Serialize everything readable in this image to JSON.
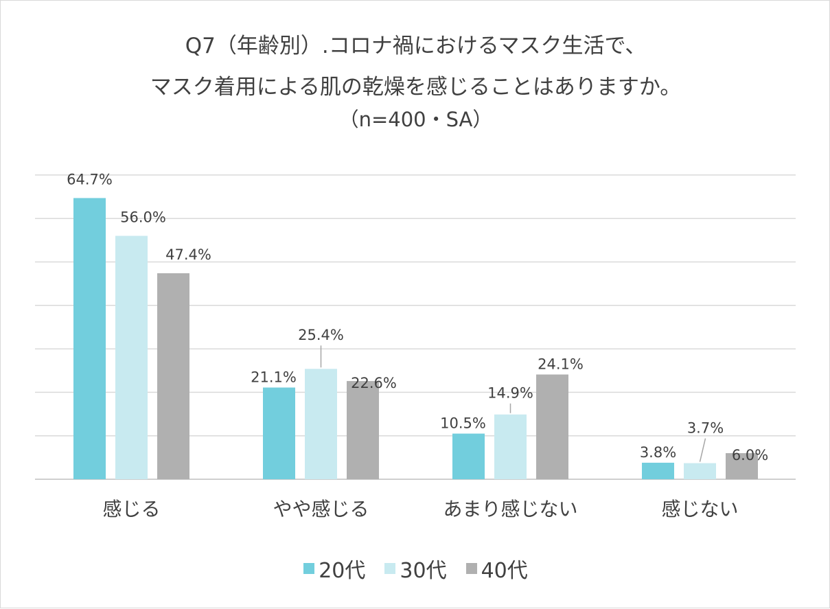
{
  "chart_data": {
    "type": "bar",
    "title_lines": [
      "Q7（年齢別）.コロナ禍におけるマスク生活で、",
      "マスク着用による肌の乾燥を感じることはありますか。",
      "（n=400・SA）"
    ],
    "categories": [
      "感じる",
      "やや感じる",
      "あまり感じない",
      "感じない"
    ],
    "series": [
      {
        "name": "20代",
        "color": "#72cedd",
        "values": [
          64.7,
          21.1,
          10.5,
          3.8
        ],
        "labels": [
          "64.7%",
          "21.1%",
          "10.5%",
          "3.8%"
        ]
      },
      {
        "name": "30代",
        "color": "#c8eaf0",
        "values": [
          56.0,
          25.4,
          14.9,
          3.7
        ],
        "labels": [
          "56.0%",
          "25.4%",
          "14.9%",
          "3.7%"
        ]
      },
      {
        "name": "40代",
        "color": "#b0b0b0",
        "values": [
          47.4,
          22.6,
          24.1,
          6.0
        ],
        "labels": [
          "47.4%",
          "22.6%",
          "24.1%",
          "6.0%"
        ]
      }
    ],
    "ylim": [
      0,
      70
    ],
    "y_gridline_step": 10,
    "grid": true,
    "legend_position": "bottom",
    "xlabel": "",
    "ylabel": ""
  }
}
